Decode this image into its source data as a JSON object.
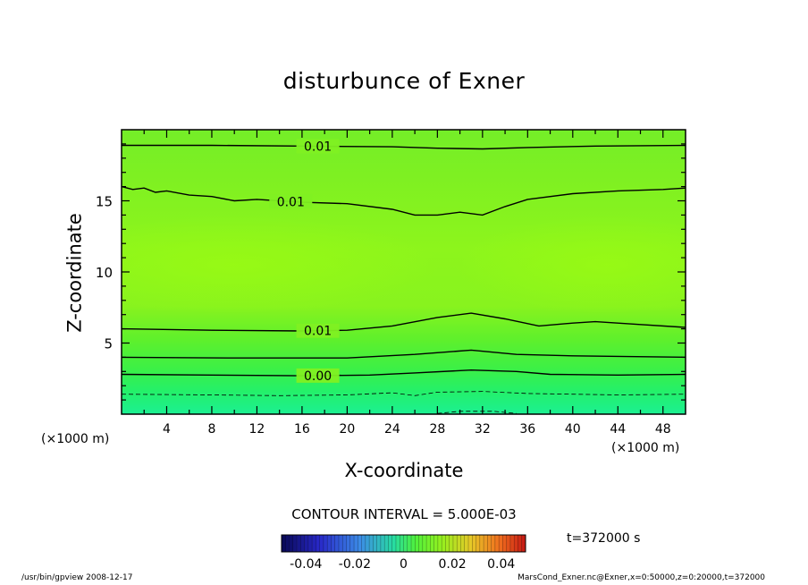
{
  "title": "disturbunce of Exner",
  "contour_interval": "CONTOUR INTERVAL = 5.000E-03",
  "time_label": "t=372000 s",
  "footer": {
    "left": "/usr/bin/gpview   2008-12-17",
    "right": "MarsCond_Exner.nc@Exner,x=0:50000,z=0:20000,t=372000"
  },
  "colors": {
    "background_field": "#88f51e",
    "low_field": "#1ef58a",
    "contour_line": "#000000"
  },
  "chart_data": {
    "type": "contour",
    "title": "disturbunce of Exner",
    "xlabel": "X-coordinate",
    "ylabel": "Z-coordinate",
    "x_unit": "(×1000 m)",
    "y_unit": "(×1000 m)",
    "xlim": [
      0,
      50
    ],
    "ylim": [
      0,
      20
    ],
    "x_ticks": [
      4,
      8,
      12,
      16,
      20,
      24,
      28,
      32,
      36,
      40,
      44,
      48
    ],
    "y_ticks": [
      5,
      10,
      15
    ],
    "contour_interval": 0.005,
    "contours": [
      {
        "label": "0.01",
        "label_x": 17.4,
        "points": [
          [
            0,
            18.9
          ],
          [
            8,
            18.9
          ],
          [
            16,
            18.85
          ],
          [
            24,
            18.8
          ],
          [
            28,
            18.7
          ],
          [
            32,
            18.65
          ],
          [
            36,
            18.75
          ],
          [
            42,
            18.85
          ],
          [
            50,
            18.9
          ]
        ]
      },
      {
        "label": "0.01",
        "label_x": 15.0,
        "points": [
          [
            0,
            16.0
          ],
          [
            1,
            15.8
          ],
          [
            2,
            15.9
          ],
          [
            3,
            15.6
          ],
          [
            4,
            15.7
          ],
          [
            6,
            15.4
          ],
          [
            8,
            15.3
          ],
          [
            10,
            15.0
          ],
          [
            12,
            15.1
          ],
          [
            16,
            14.9
          ],
          [
            20,
            14.8
          ],
          [
            24,
            14.4
          ],
          [
            26,
            14.0
          ],
          [
            28,
            14.0
          ],
          [
            30,
            14.2
          ],
          [
            32,
            14.0
          ],
          [
            34,
            14.6
          ],
          [
            36,
            15.1
          ],
          [
            40,
            15.5
          ],
          [
            44,
            15.7
          ],
          [
            48,
            15.8
          ],
          [
            50,
            15.9
          ]
        ]
      },
      {
        "label": "0.01",
        "label_x": 17.4,
        "points": [
          [
            0,
            6.0
          ],
          [
            8,
            5.9
          ],
          [
            16,
            5.85
          ],
          [
            20,
            5.9
          ],
          [
            24,
            6.2
          ],
          [
            28,
            6.8
          ],
          [
            31,
            7.1
          ],
          [
            34,
            6.7
          ],
          [
            37,
            6.2
          ],
          [
            40,
            6.4
          ],
          [
            42,
            6.5
          ],
          [
            46,
            6.3
          ],
          [
            50,
            6.1
          ]
        ]
      },
      {
        "label": "",
        "points": [
          [
            0,
            4.0
          ],
          [
            10,
            3.95
          ],
          [
            20,
            3.95
          ],
          [
            26,
            4.2
          ],
          [
            31,
            4.5
          ],
          [
            35,
            4.2
          ],
          [
            40,
            4.1
          ],
          [
            50,
            4.0
          ]
        ]
      },
      {
        "label": "0.00",
        "label_x": 17.4,
        "points": [
          [
            0,
            2.8
          ],
          [
            8,
            2.75
          ],
          [
            16,
            2.7
          ],
          [
            22,
            2.75
          ],
          [
            26,
            2.9
          ],
          [
            31,
            3.1
          ],
          [
            35,
            3.0
          ],
          [
            38,
            2.8
          ],
          [
            44,
            2.75
          ],
          [
            50,
            2.8
          ]
        ]
      },
      {
        "label": "",
        "dashed": true,
        "points": [
          [
            0,
            1.4
          ],
          [
            8,
            1.35
          ],
          [
            14,
            1.3
          ],
          [
            20,
            1.35
          ],
          [
            24,
            1.5
          ],
          [
            26,
            1.3
          ],
          [
            28,
            1.55
          ],
          [
            32,
            1.6
          ],
          [
            36,
            1.45
          ],
          [
            40,
            1.4
          ],
          [
            44,
            1.35
          ],
          [
            50,
            1.4
          ]
        ]
      },
      {
        "label": "",
        "dashed": true,
        "points": [
          [
            28,
            0.05
          ],
          [
            30,
            0.2
          ],
          [
            33,
            0.2
          ],
          [
            35,
            0.05
          ]
        ]
      }
    ],
    "colorbar": {
      "range": [
        -0.05,
        0.05
      ],
      "tick_labels": [
        "-0.04",
        "-0.02",
        "0",
        "0.02",
        "0.04"
      ],
      "tick_values": [
        -0.04,
        -0.02,
        0,
        0.02,
        0.04
      ]
    }
  }
}
